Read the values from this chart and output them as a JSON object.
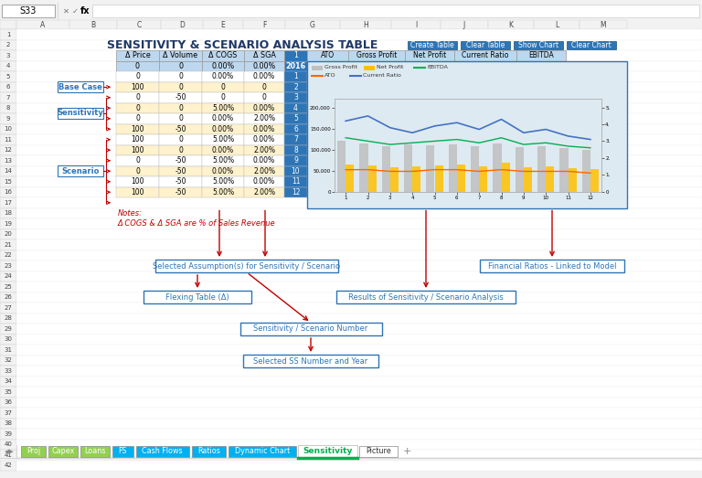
{
  "title": "SENSITIVITY & SCENARIO ANALYSIS TABLE",
  "title_color": "#1F3864",
  "buttons": [
    "Create Table",
    "Clear Table",
    "Show Chart",
    "Clear Chart"
  ],
  "button_bg": "#2E75B6",
  "table_col_headers": [
    "Δ Price",
    "Δ Volume",
    "Δ COGS",
    "Δ SGA",
    "1"
  ],
  "table_year_row": [
    "0",
    "0",
    "0.00%",
    "0.00%",
    "2016"
  ],
  "table_data": [
    [
      "0",
      "0",
      "0.00%",
      "0.00%",
      "1"
    ],
    [
      "100",
      "0",
      "0",
      "0",
      "2"
    ],
    [
      "0",
      "-50",
      "0",
      "0",
      "3"
    ],
    [
      "0",
      "0",
      "5.00%",
      "0.00%",
      "4"
    ],
    [
      "0",
      "0",
      "0.00%",
      "2.00%",
      "5"
    ],
    [
      "100",
      "-50",
      "0.00%",
      "0.00%",
      "6"
    ],
    [
      "100",
      "0",
      "5.00%",
      "0.00%",
      "7"
    ],
    [
      "100",
      "0",
      "0.00%",
      "2.00%",
      "8"
    ],
    [
      "0",
      "-50",
      "5.00%",
      "0.00%",
      "9"
    ],
    [
      "0",
      "-50",
      "0.00%",
      "2.00%",
      "10"
    ],
    [
      "100",
      "-50",
      "5.00%",
      "0.00%",
      "11"
    ],
    [
      "100",
      "-50",
      "5.00%",
      "2.00%",
      "12"
    ]
  ],
  "ato_headers": [
    "ATO",
    "Gross Profit",
    "Net Profit",
    "Current Ratio",
    "EBITDA"
  ],
  "notes_line1": "Notes:",
  "notes_line2": "Δ COGS & Δ SGA are % of Sales Revenue",
  "flow_box1": "Selected Assumption(s) for Sensitivity / Scenario",
  "flow_box2": "Flexing Table (Δ)",
  "flow_box3": "Results of Sensitivity / Scenario Analysis",
  "flow_box4": "Financial Ratios - Linked to Model",
  "flow_box5": "Sensitivity / Scenario Number",
  "flow_box6": "Selected SS Number and Year",
  "side_labels": [
    "Base Case",
    "Sensitivity",
    "Scenario"
  ],
  "sheet_tabs": [
    "Proj",
    "Capex",
    "Loans",
    "FS",
    "Cash Flows",
    "Ratios",
    "Dynamic Chart",
    "Sensitivity",
    "Picture"
  ],
  "sheet_tab_colors": [
    "#92D050",
    "#92D050",
    "#92D050",
    "#00B0F0",
    "#00B0F0",
    "#00B0F0",
    "#00B0F0",
    "active",
    "#FFFFFF"
  ],
  "col_letters": [
    "A",
    "B",
    "C",
    "D",
    "E",
    "F",
    "G",
    "H",
    "I",
    "J",
    "K",
    "L",
    "M"
  ],
  "row_numbers": [
    "1",
    "2",
    "3",
    "4",
    "5",
    "6",
    "7",
    "8",
    "9",
    "10",
    "11",
    "12",
    "13",
    "14",
    "15",
    "16",
    "17",
    "18",
    "19",
    "20",
    "21",
    "22",
    "23",
    "24",
    "25",
    "26",
    "27",
    "28",
    "29",
    "30",
    "31",
    "32",
    "33",
    "34",
    "35",
    "36",
    "37",
    "38",
    "39",
    "40",
    "41",
    "42"
  ],
  "chart_gross_profit": [
    120000,
    115000,
    108000,
    112000,
    110000,
    113000,
    108000,
    115000,
    105000,
    107000,
    103000,
    100000
  ],
  "chart_net_profit": [
    65000,
    62000,
    58000,
    60000,
    63000,
    65000,
    60000,
    68000,
    58000,
    60000,
    56000,
    54000
  ],
  "chart_ebitda_ratio": [
    3.2,
    3.0,
    2.8,
    2.9,
    3.0,
    3.1,
    2.9,
    3.2,
    2.8,
    2.9,
    2.7,
    2.6
  ],
  "chart_ato_ratio": [
    1.3,
    1.3,
    1.2,
    1.2,
    1.3,
    1.3,
    1.2,
    1.3,
    1.2,
    1.2,
    1.2,
    1.1
  ],
  "chart_current_ratio": [
    4.2,
    4.5,
    3.8,
    3.5,
    3.9,
    4.1,
    3.7,
    4.3,
    3.5,
    3.7,
    3.3,
    3.1
  ]
}
